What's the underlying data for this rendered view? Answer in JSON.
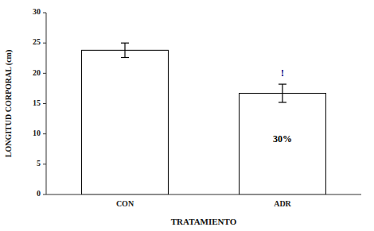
{
  "chart_data": {
    "type": "bar",
    "categories": [
      "CON",
      "ADR"
    ],
    "values": [
      23.8,
      16.7
    ],
    "errors": [
      1.2,
      1.5
    ],
    "color": "#ffffff",
    "xlabel": "TRATAMIENTO",
    "ylabel": "LONGITUD CORPORAL (cm)",
    "ylim": [
      0,
      30
    ],
    "yticks": [
      0,
      5,
      10,
      15,
      20,
      25,
      30
    ],
    "grid": false,
    "annotations": [
      {
        "text": "30%",
        "x": "ADR",
        "y": 9.0
      },
      {
        "text": "!",
        "x": "ADR",
        "y": 19.5,
        "color": "#000080"
      }
    ]
  }
}
